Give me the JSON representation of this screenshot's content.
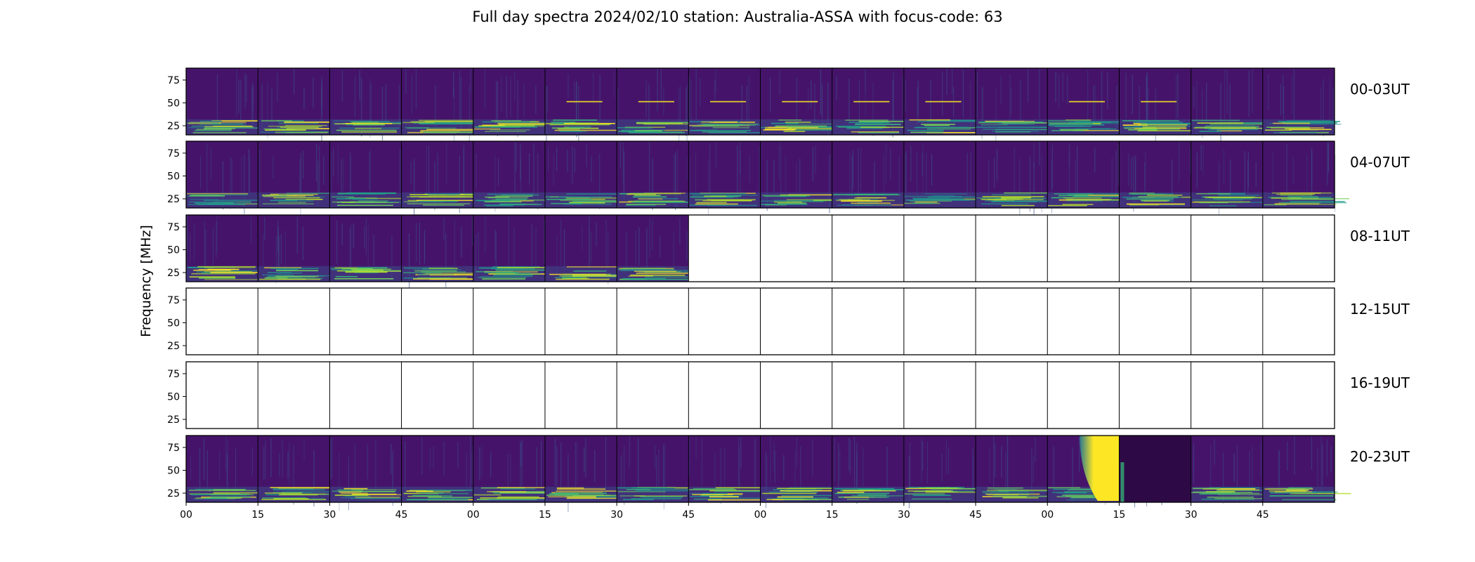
{
  "chart_data": {
    "type": "heatmap",
    "title": "Full day spectra 2024/02/10 station: Australia-ASSA with focus-code: 63",
    "ylabel": "Frequency [MHz]",
    "xlabel": "",
    "ylim": [
      15,
      88
    ],
    "yticks": [
      25,
      50,
      75
    ],
    "xticks": [
      "00",
      "15",
      "30",
      "45",
      "00",
      "15",
      "30",
      "45",
      "00",
      "15",
      "30",
      "45",
      "00",
      "15",
      "30",
      "45"
    ],
    "colormap": "viridis",
    "panels_per_row": 16,
    "minutes_per_panel": 15,
    "rows": [
      {
        "label": "00-03UT",
        "filled": [
          1,
          1,
          1,
          1,
          1,
          1,
          1,
          1,
          1,
          1,
          1,
          1,
          1,
          1,
          1,
          1
        ]
      },
      {
        "label": "04-07UT",
        "filled": [
          1,
          1,
          1,
          1,
          1,
          1,
          1,
          1,
          1,
          1,
          1,
          1,
          1,
          1,
          1,
          1
        ]
      },
      {
        "label": "08-11UT",
        "filled": [
          1,
          1,
          1,
          1,
          1,
          1,
          1,
          0,
          0,
          0,
          0,
          0,
          0,
          0,
          0,
          0
        ]
      },
      {
        "label": "12-15UT",
        "filled": [
          0,
          0,
          0,
          0,
          0,
          0,
          0,
          0,
          0,
          0,
          0,
          0,
          0,
          0,
          0,
          0
        ]
      },
      {
        "label": "16-19UT",
        "filled": [
          0,
          0,
          0,
          0,
          0,
          0,
          0,
          0,
          0,
          0,
          0,
          0,
          0,
          0,
          0,
          0
        ]
      },
      {
        "label": "20-23UT",
        "filled": [
          1,
          1,
          1,
          1,
          1,
          1,
          1,
          1,
          1,
          1,
          1,
          1,
          1,
          1,
          1,
          1
        ]
      }
    ],
    "events": [
      {
        "row": 5,
        "panel": 12,
        "type": "intense broadband burst"
      }
    ]
  }
}
